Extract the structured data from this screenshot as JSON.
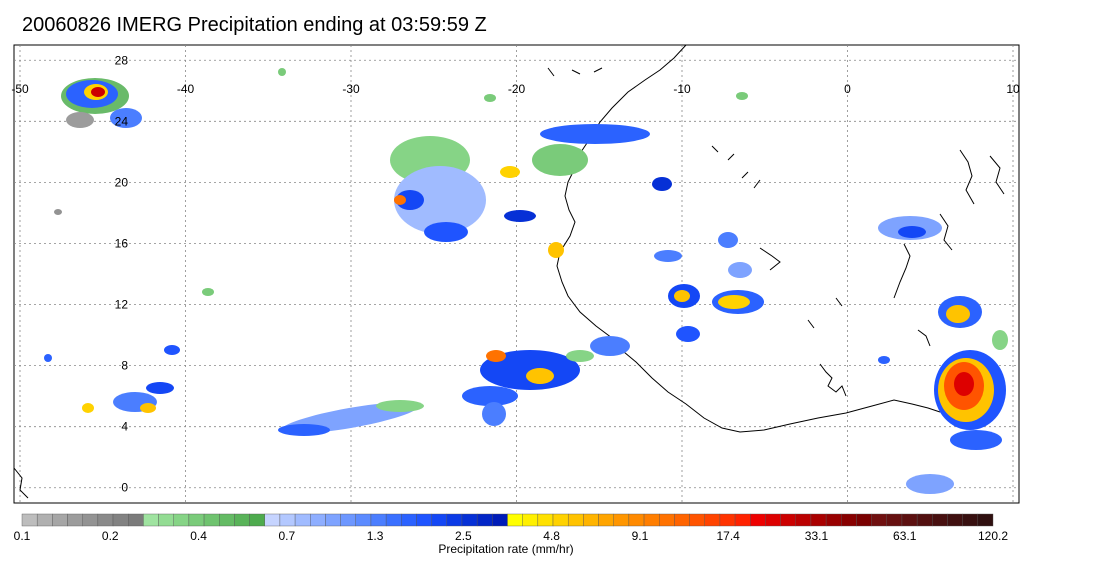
{
  "title": "20060826 IMERG Precipitation ending at 03:59:59 Z",
  "map": {
    "lon_ticks": [
      "-50",
      "-40",
      "-30",
      "-20",
      "-10",
      "0",
      "10"
    ],
    "lat_ticks": [
      "28",
      "24",
      "20",
      "16",
      "12",
      "8",
      "4",
      "0"
    ],
    "lon_range": [
      -50,
      10
    ],
    "lat_range": [
      -1,
      29
    ],
    "gridlines": "dotted"
  },
  "colorbar": {
    "label": "Precipitation rate (mm/hr)",
    "tick_labels": [
      "0.1",
      "0.2",
      "0.4",
      "0.7",
      "1.3",
      "2.5",
      "4.8",
      "9.1",
      "17.4",
      "33.1",
      "63.1",
      "120.2"
    ],
    "colors": [
      "#bdbdbd",
      "#b0b0b0",
      "#a6a6a6",
      "#9c9c9c",
      "#939393",
      "#8a8a8a",
      "#828282",
      "#7b7b7b",
      "#9fe3a0",
      "#93dc93",
      "#86d486",
      "#7acb7a",
      "#6fc36f",
      "#64bb64",
      "#59b359",
      "#4eab4e",
      "#c6d4ff",
      "#b3c8ff",
      "#a0bbff",
      "#8eaeff",
      "#7ea3ff",
      "#6d97ff",
      "#5c8bff",
      "#4b7eff",
      "#3a70ff",
      "#2b62ff",
      "#1f54ff",
      "#1447f5",
      "#0b3ae6",
      "#0630d6",
      "#0226c7",
      "#001cb8",
      "#ffff00",
      "#fff000",
      "#ffe100",
      "#ffd200",
      "#ffc300",
      "#ffb400",
      "#ffa500",
      "#ff9600",
      "#ff8a00",
      "#ff7e00",
      "#ff7200",
      "#ff6400",
      "#ff5400",
      "#ff4400",
      "#ff3300",
      "#ff2200",
      "#ee0000",
      "#dd0000",
      "#cc0000",
      "#bb0000",
      "#aa0000",
      "#990000",
      "#880000",
      "#7a0000",
      "#701010",
      "#661010",
      "#5c1010",
      "#521010",
      "#481010",
      "#401010",
      "#381010",
      "#301010"
    ]
  }
}
